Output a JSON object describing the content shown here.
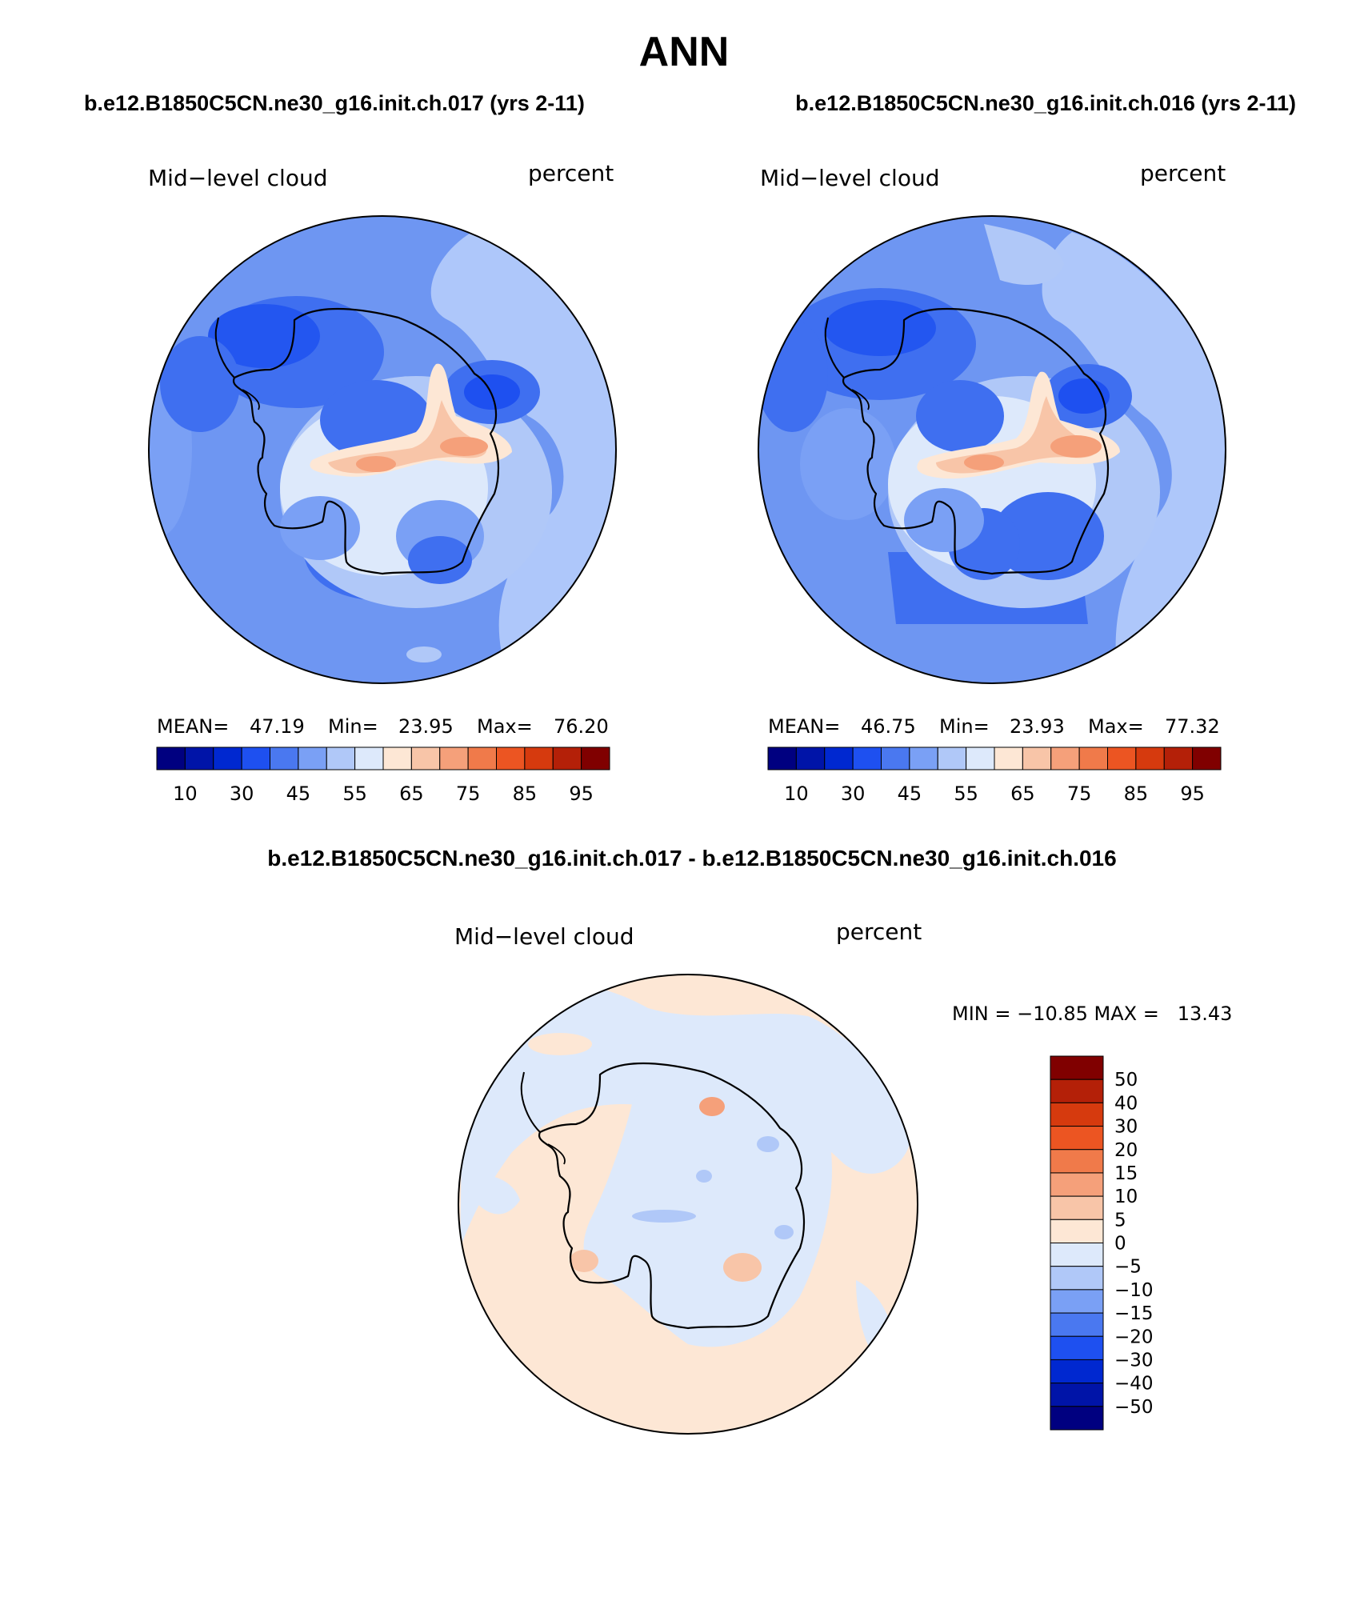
{
  "title": "ANN",
  "subtitle_left": "b.e12.B1850C5CN.ne30_g16.init.ch.017 (yrs 2-11)",
  "subtitle_right": "b.e12.B1850C5CN.ne30_g16.init.ch.016 (yrs 2-11)",
  "diff_title": "b.e12.B1850C5CN.ne30_g16.init.ch.017 - b.e12.B1850C5CN.ne30_g16.init.ch.016",
  "panels": [
    {
      "variable": "Mid−level cloud",
      "units": "percent",
      "mean_label": "MEAN=",
      "mean": "47.19",
      "min_label": "Min=",
      "min": "23.95",
      "max_label": "Max=",
      "max": "76.20"
    },
    {
      "variable": "Mid−level cloud",
      "units": "percent",
      "mean_label": "MEAN=",
      "mean": "46.75",
      "min_label": "Min=",
      "min": "23.93",
      "max_label": "Max=",
      "max": "77.32"
    }
  ],
  "diff_panel": {
    "variable": "Mid−level cloud",
    "units": "percent",
    "minmax": "MIN = −10.85 MAX =   13.43"
  },
  "colorbar_top": {
    "colors": [
      "#000080",
      "#0014a8",
      "#0028d0",
      "#1e50f0",
      "#4a78f0",
      "#7aa0f5",
      "#b0c8f8",
      "#dde9fb",
      "#fde7d5",
      "#f8c5a8",
      "#f5a07a",
      "#f07a4a",
      "#ec5522",
      "#d63a0e",
      "#b42008",
      "#800000"
    ],
    "labels": [
      "10",
      "30",
      "45",
      "55",
      "65",
      "75",
      "85",
      "95"
    ]
  },
  "colorbar_diff": {
    "colors": [
      "#800000",
      "#b42008",
      "#d63a0e",
      "#ec5522",
      "#f07a4a",
      "#f5a07a",
      "#f8c5a8",
      "#fde7d5",
      "#dde9fb",
      "#b0c8f8",
      "#7aa0f5",
      "#4a78f0",
      "#1e50f0",
      "#0028d0",
      "#0014a8",
      "#000080"
    ],
    "labels": [
      "50",
      "40",
      "30",
      "20",
      "15",
      "10",
      "5",
      "0",
      "−5",
      "−10",
      "−15",
      "−20",
      "−30",
      "−40",
      "−50"
    ]
  }
}
